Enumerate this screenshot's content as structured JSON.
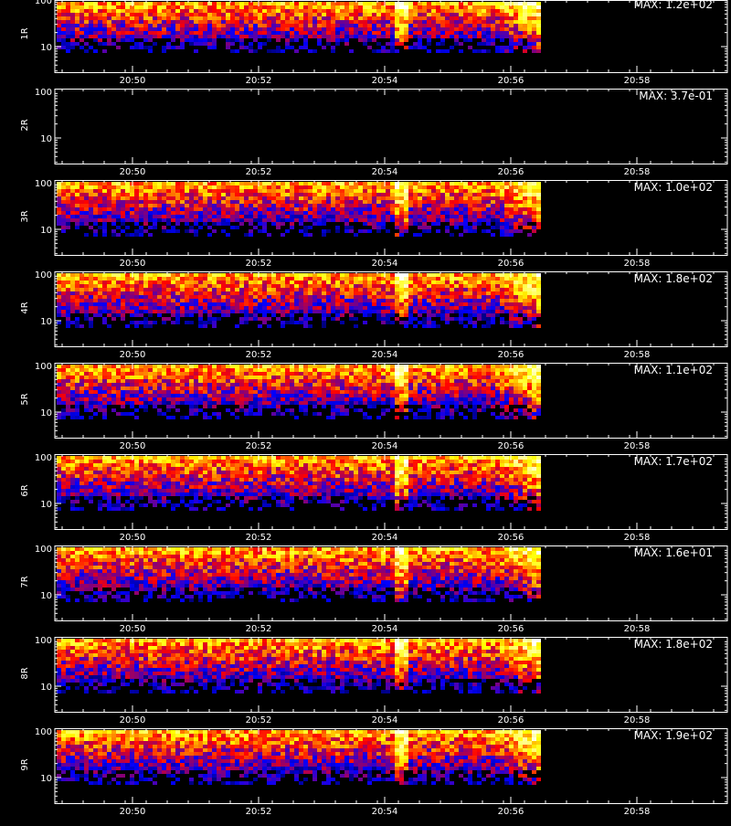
{
  "chart_data": [
    {
      "type": "heatmap",
      "ylabel": "1R",
      "max_label": "MAX: 1.2e+02",
      "has_data": true
    },
    {
      "type": "heatmap",
      "ylabel": "2R",
      "max_label": "MAX: 3.7e-01",
      "has_data": false
    },
    {
      "type": "heatmap",
      "ylabel": "3R",
      "max_label": "MAX: 1.0e+02",
      "has_data": true
    },
    {
      "type": "heatmap",
      "ylabel": "4R",
      "max_label": "MAX: 1.8e+02",
      "has_data": true
    },
    {
      "type": "heatmap",
      "ylabel": "5R",
      "max_label": "MAX: 1.1e+02",
      "has_data": true
    },
    {
      "type": "heatmap",
      "ylabel": "6R",
      "max_label": "MAX: 1.7e+02",
      "has_data": true
    },
    {
      "type": "heatmap",
      "ylabel": "7R",
      "max_label": "MAX: 1.6e+01",
      "has_data": true
    },
    {
      "type": "heatmap",
      "ylabel": "8R",
      "max_label": "MAX: 1.8e+02",
      "has_data": true
    },
    {
      "type": "heatmap",
      "ylabel": "9R",
      "max_label": "MAX: 1.9e+02",
      "has_data": true
    }
  ],
  "shared_axes": {
    "x_ticks": [
      "20:50",
      "20:52",
      "20:54",
      "20:56",
      "20:58"
    ],
    "y_ticks": [
      "100",
      "10"
    ],
    "y_scale": "log",
    "data_end": "20:56:30"
  },
  "colors": {
    "background": "#000000",
    "axis": "#ffffff",
    "colormap": [
      "#000000",
      "#0000ff",
      "#ff0000",
      "#ffff00",
      "#ffffff"
    ]
  }
}
